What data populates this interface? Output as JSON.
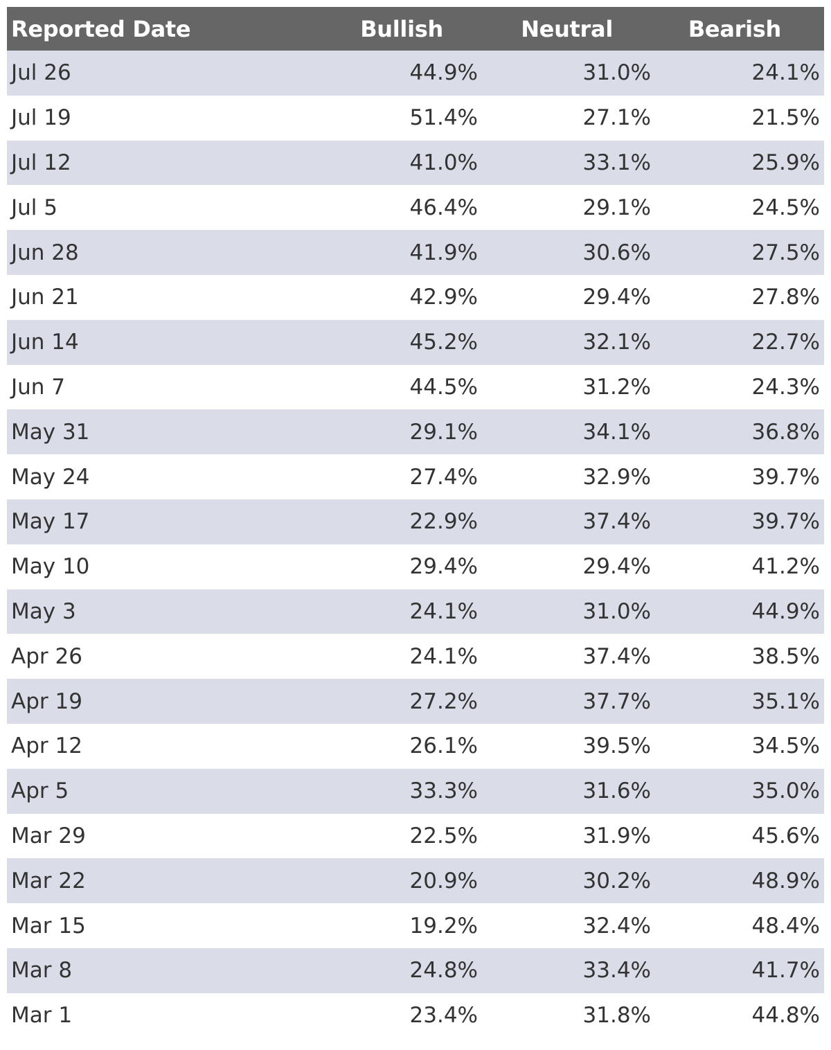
{
  "chart_data": {
    "type": "table",
    "columns": [
      "Reported Date",
      "Bullish",
      "Neutral",
      "Bearish"
    ],
    "rows": [
      {
        "date": "Jul 26",
        "bullish": "44.9%",
        "neutral": "31.0%",
        "bearish": "24.1%"
      },
      {
        "date": "Jul 19",
        "bullish": "51.4%",
        "neutral": "27.1%",
        "bearish": "21.5%"
      },
      {
        "date": "Jul 12",
        "bullish": "41.0%",
        "neutral": "33.1%",
        "bearish": "25.9%"
      },
      {
        "date": "Jul 5",
        "bullish": "46.4%",
        "neutral": "29.1%",
        "bearish": "24.5%"
      },
      {
        "date": "Jun 28",
        "bullish": "41.9%",
        "neutral": "30.6%",
        "bearish": "27.5%"
      },
      {
        "date": "Jun 21",
        "bullish": "42.9%",
        "neutral": "29.4%",
        "bearish": "27.8%"
      },
      {
        "date": "Jun 14",
        "bullish": "45.2%",
        "neutral": "32.1%",
        "bearish": "22.7%"
      },
      {
        "date": "Jun 7",
        "bullish": "44.5%",
        "neutral": "31.2%",
        "bearish": "24.3%"
      },
      {
        "date": "May 31",
        "bullish": "29.1%",
        "neutral": "34.1%",
        "bearish": "36.8%"
      },
      {
        "date": "May 24",
        "bullish": "27.4%",
        "neutral": "32.9%",
        "bearish": "39.7%"
      },
      {
        "date": "May 17",
        "bullish": "22.9%",
        "neutral": "37.4%",
        "bearish": "39.7%"
      },
      {
        "date": "May 10",
        "bullish": "29.4%",
        "neutral": "29.4%",
        "bearish": "41.2%"
      },
      {
        "date": "May 3",
        "bullish": "24.1%",
        "neutral": "31.0%",
        "bearish": "44.9%"
      },
      {
        "date": "Apr 26",
        "bullish": "24.1%",
        "neutral": "37.4%",
        "bearish": "38.5%"
      },
      {
        "date": "Apr 19",
        "bullish": "27.2%",
        "neutral": "37.7%",
        "bearish": "35.1%"
      },
      {
        "date": "Apr 12",
        "bullish": "26.1%",
        "neutral": "39.5%",
        "bearish": "34.5%"
      },
      {
        "date": "Apr 5",
        "bullish": "33.3%",
        "neutral": "31.6%",
        "bearish": "35.0%"
      },
      {
        "date": "Mar 29",
        "bullish": "22.5%",
        "neutral": "31.9%",
        "bearish": "45.6%"
      },
      {
        "date": "Mar 22",
        "bullish": "20.9%",
        "neutral": "30.2%",
        "bearish": "48.9%"
      },
      {
        "date": "Mar 15",
        "bullish": "19.2%",
        "neutral": "32.4%",
        "bearish": "48.4%"
      },
      {
        "date": "Mar 8",
        "bullish": "24.8%",
        "neutral": "33.4%",
        "bearish": "41.7%"
      },
      {
        "date": "Mar 1",
        "bullish": "23.4%",
        "neutral": "31.8%",
        "bearish": "44.8%"
      }
    ]
  },
  "colors": {
    "header_bg": "#666666",
    "header_text": "#ffffff",
    "stripe_bg": "#dadde8",
    "body_text": "#333333"
  }
}
